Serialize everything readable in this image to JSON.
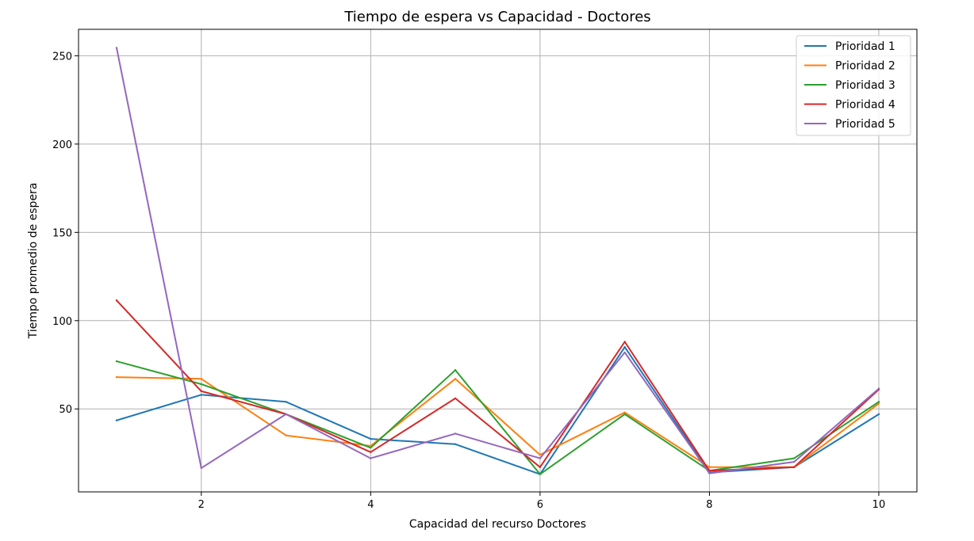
{
  "chart_data": {
    "type": "line",
    "title": "Tiempo de espera vs Capacidad - Doctores",
    "xlabel": "Capacidad del recurso Doctores",
    "ylabel": "Tiempo promedio de espera",
    "xlim": [
      0.55,
      10.45
    ],
    "ylim": [
      3,
      265
    ],
    "xticks": [
      2,
      4,
      6,
      8,
      10
    ],
    "yticks": [
      50,
      100,
      150,
      200,
      250
    ],
    "grid": true,
    "legend_position": "top-right",
    "x": [
      1,
      2,
      3,
      4,
      5,
      6,
      7,
      8,
      9,
      10
    ],
    "series": [
      {
        "name": "Prioridad 1",
        "color": "#1f77b4",
        "values": [
          43.5,
          58,
          54,
          33,
          30,
          13,
          85,
          14,
          17,
          47
        ]
      },
      {
        "name": "Prioridad 2",
        "color": "#ff7f0e",
        "values": [
          68,
          67,
          35,
          29,
          67,
          24,
          48,
          17,
          17,
          53
        ]
      },
      {
        "name": "Prioridad 3",
        "color": "#2ca02c",
        "values": [
          77,
          64,
          47,
          28,
          72,
          13,
          47,
          15,
          22,
          54
        ]
      },
      {
        "name": "Prioridad 4",
        "color": "#d62728",
        "values": [
          111.5,
          60,
          47,
          25.5,
          56,
          17,
          88,
          15,
          17,
          61
        ]
      },
      {
        "name": "Prioridad 5",
        "color": "#9467bd",
        "values": [
          254.5,
          16.5,
          47,
          22,
          36,
          22,
          82,
          13.5,
          20,
          61.5
        ]
      }
    ]
  }
}
